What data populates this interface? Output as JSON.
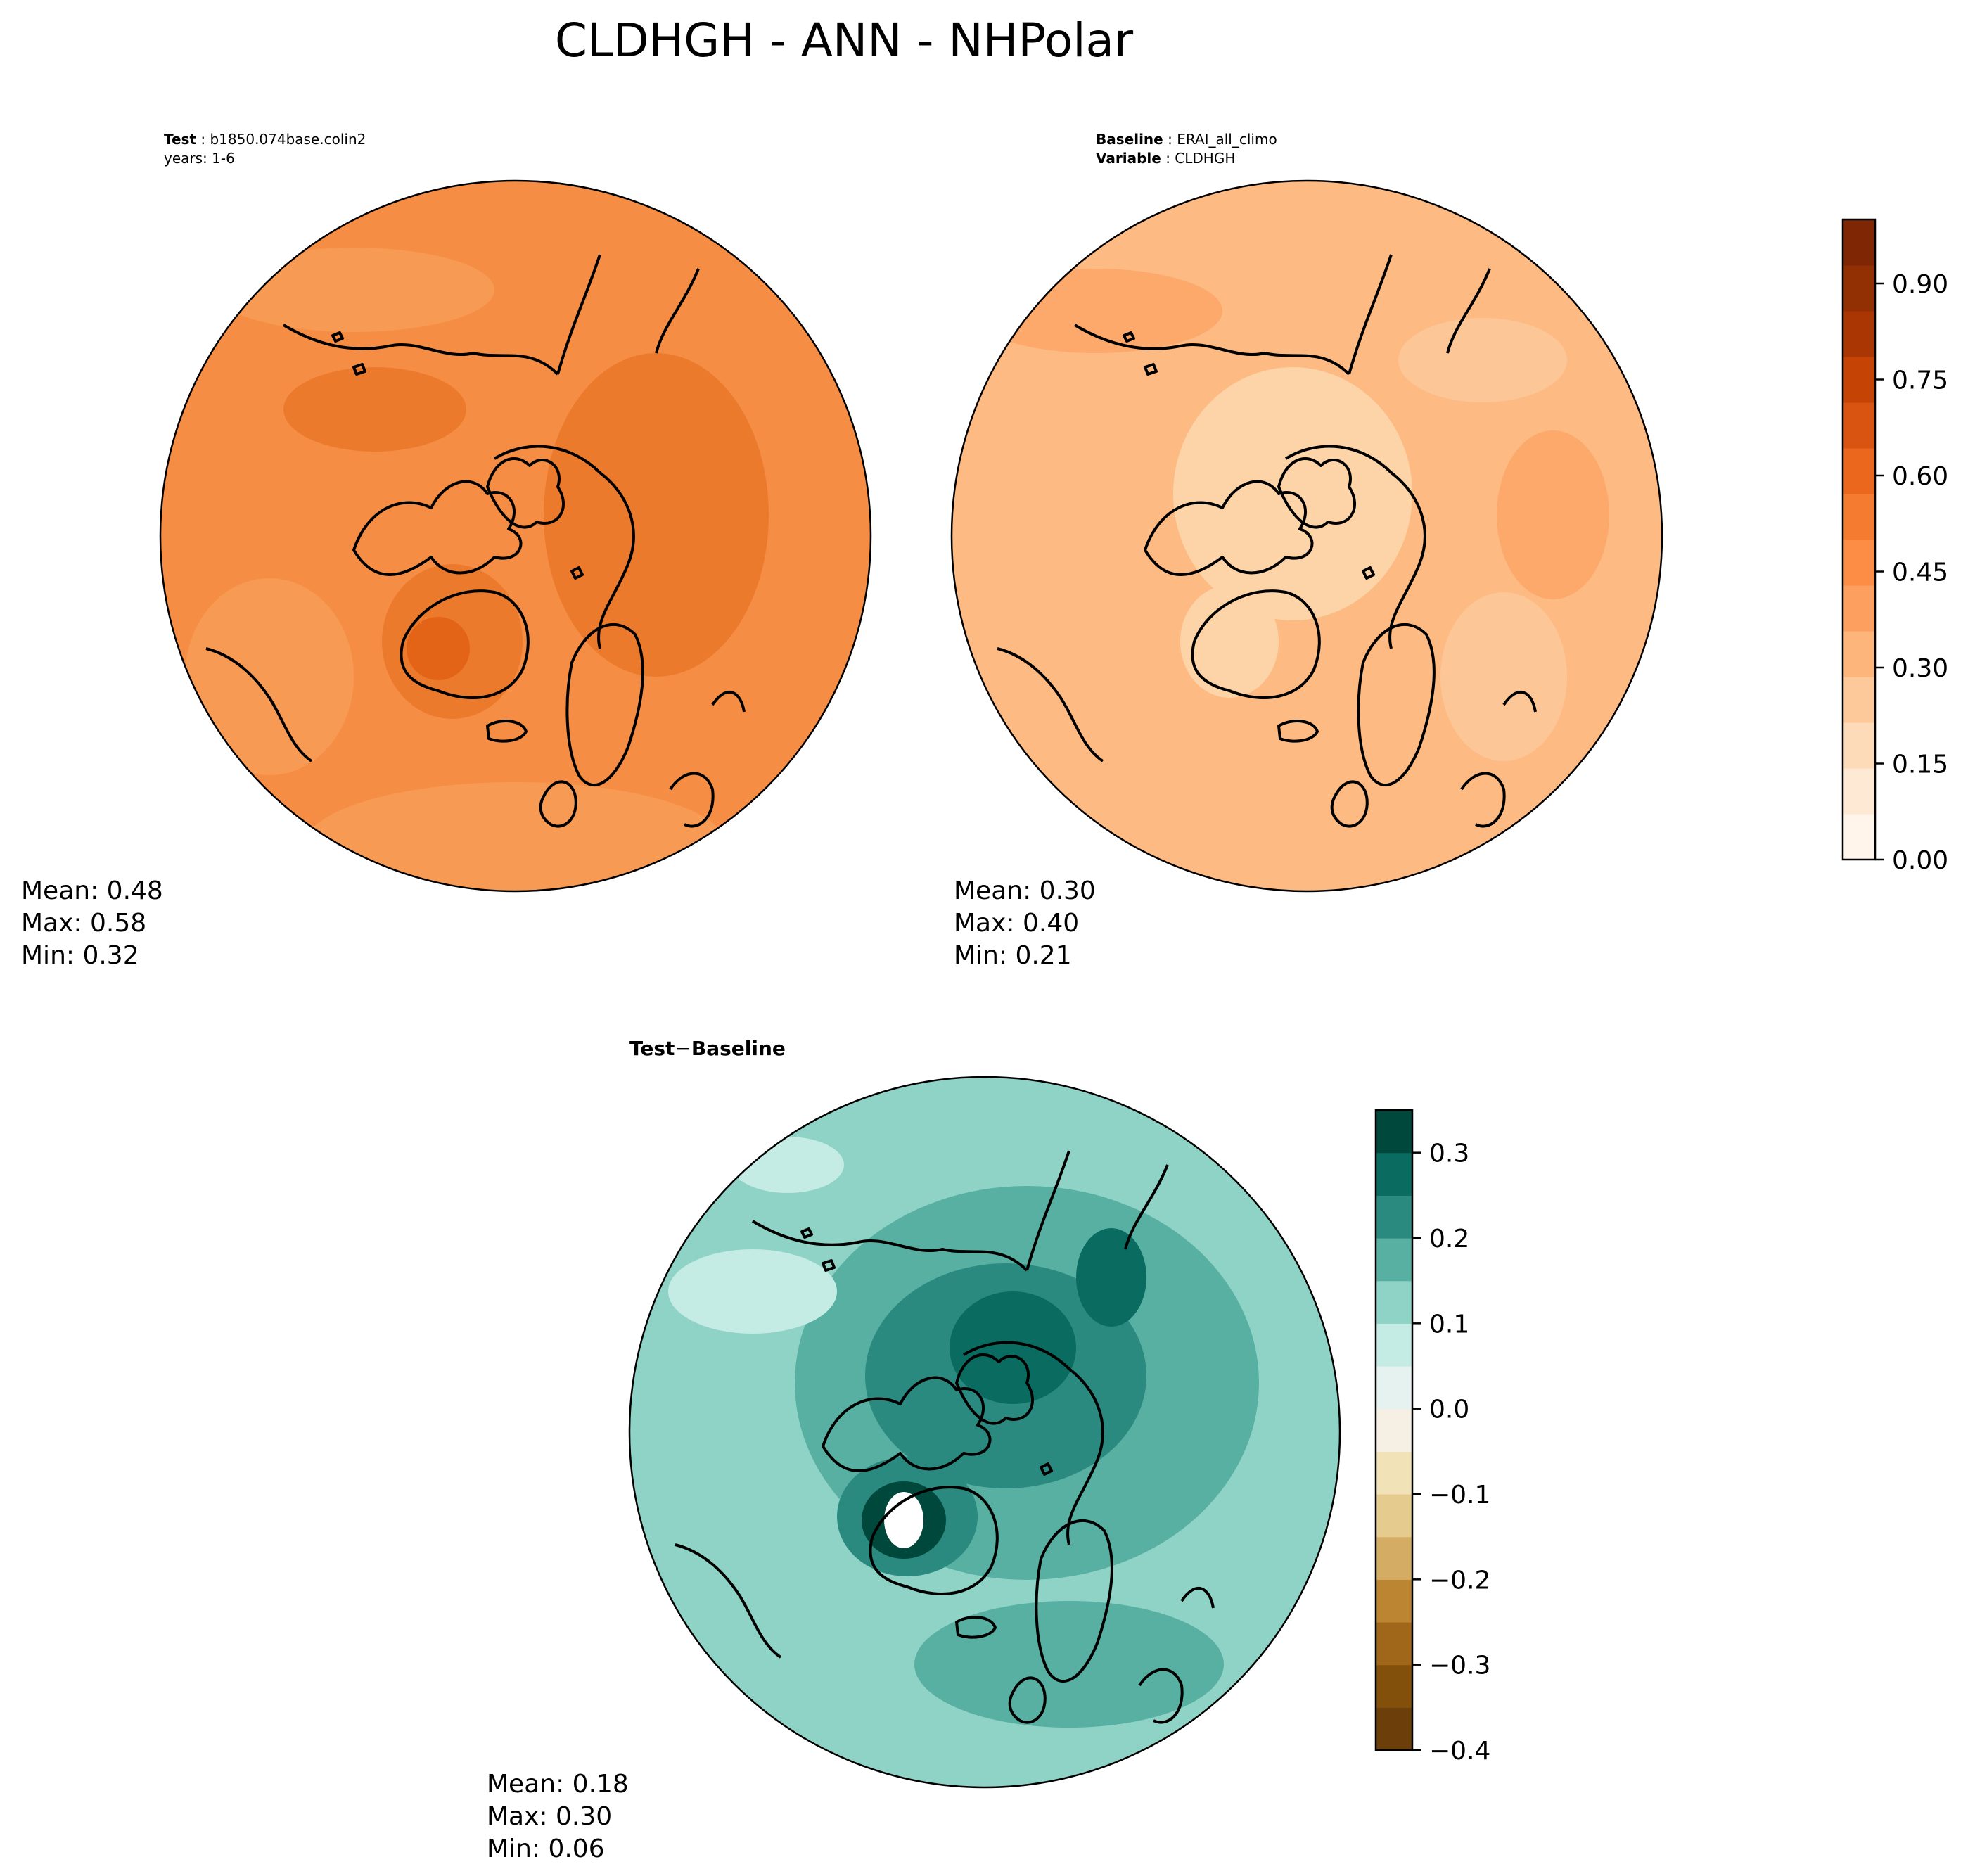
{
  "figure": {
    "title": "CLDHGH - ANN - NHPolar"
  },
  "panels": {
    "test": {
      "label_key": "Test",
      "label_value": "b1850.074base.colin2",
      "line2": "years: 1-6",
      "stats": {
        "mean": "Mean:  0.48",
        "max": "Max:  0.58",
        "min": "Min:  0.32"
      }
    },
    "baseline": {
      "label_key": "Baseline",
      "label_value": "ERAI_all_climo",
      "line2_key": "Variable",
      "line2_value": "CLDHGH",
      "stats": {
        "mean": "Mean:  0.30",
        "max": "Max:  0.40",
        "min": "Min:  0.21"
      }
    },
    "diff": {
      "title_a": "Test",
      "title_op": "−",
      "title_b": "Baseline",
      "stats": {
        "mean": "Mean:  0.18",
        "max": "Max:  0.30",
        "min": "Min:  0.06"
      }
    }
  },
  "colors": {
    "ocean_test": "#f58e44",
    "ocean_base": "#fdba83",
    "ocean_diff": "#5ab2a6",
    "coast": "#000000"
  },
  "chart_data": [
    {
      "type": "heatmap",
      "title": "Test: b1850.074base.colin2",
      "projection": "north-polar-stereographic",
      "variable": "CLDHGH",
      "mean": 0.48,
      "max": 0.58,
      "min": 0.32
    },
    {
      "type": "heatmap",
      "title": "Baseline: ERAI_all_climo",
      "projection": "north-polar-stereographic",
      "variable": "CLDHGH",
      "mean": 0.3,
      "max": 0.4,
      "min": 0.21
    },
    {
      "type": "heatmap",
      "title": "Test − Baseline",
      "projection": "north-polar-stereographic",
      "variable": "CLDHGH",
      "mean": 0.18,
      "max": 0.3,
      "min": 0.06
    }
  ],
  "colorbars": {
    "main": {
      "cmap": "Oranges",
      "range": [
        0.0,
        1.0
      ],
      "tick_values": [
        0.0,
        0.15,
        0.3,
        0.45,
        0.6,
        0.75,
        0.9
      ],
      "tick_labels": [
        "0.00",
        "0.15",
        "0.30",
        "0.45",
        "0.60",
        "0.75",
        "0.90"
      ],
      "levels": [
        "#fff5eb",
        "#fee9d4",
        "#fddbb9",
        "#fdc89a",
        "#fdb57c",
        "#fda05f",
        "#fd8d45",
        "#f47b30",
        "#ea671d",
        "#d95411",
        "#c54305",
        "#aa3703",
        "#922f03",
        "#7f2704"
      ]
    },
    "diff": {
      "cmap": "BrBG",
      "range": [
        -0.4,
        0.35
      ],
      "tick_values": [
        -0.4,
        -0.3,
        -0.2,
        -0.1,
        0.0,
        0.1,
        0.2,
        0.3
      ],
      "tick_labels": [
        "−0.4",
        "−0.3",
        "−0.2",
        "−0.1",
        "0.0",
        "0.1",
        "0.2",
        "0.3"
      ],
      "levels": [
        "#6b3e0a",
        "#83500b",
        "#a0661a",
        "#bc8532",
        "#d4ac64",
        "#e6cb8e",
        "#f2e2b8",
        "#f5f0e3",
        "#e6f2ef",
        "#c5ebe5",
        "#8fd2c6",
        "#57b0a2",
        "#2b8a80",
        "#0a6b60",
        "#01483c"
      ]
    }
  }
}
